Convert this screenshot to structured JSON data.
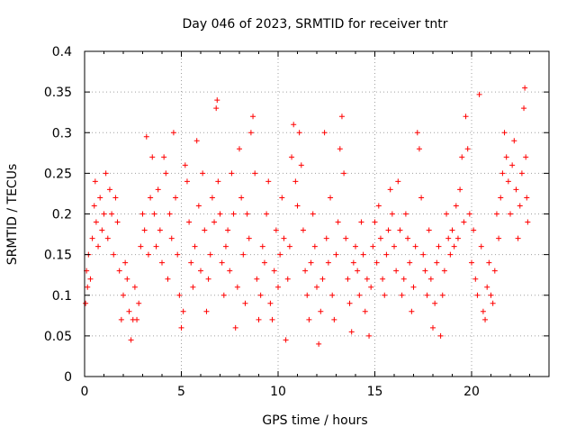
{
  "chart_data": {
    "type": "scatter",
    "title": "Day 046 of 2023, SRMTID for receiver tntr",
    "xlabel": "GPS time / hours",
    "ylabel": "SRMTID / TECUs",
    "xlim": [
      0,
      24
    ],
    "ylim": [
      0,
      0.4
    ],
    "x_ticks": [
      0,
      5,
      10,
      15,
      20
    ],
    "x_tick_labels": [
      "0",
      "5",
      "10",
      "15",
      "20"
    ],
    "y_ticks": [
      0,
      0.05,
      0.1,
      0.15,
      0.2,
      0.25,
      0.3,
      0.35,
      0.4
    ],
    "y_tick_labels": [
      "0",
      "0.05",
      "0.1",
      "0.15",
      "0.2",
      "0.25",
      "0.3",
      "0.35",
      "0.4"
    ],
    "grid": true,
    "marker": "+",
    "marker_color": "#ff0000",
    "series": [
      {
        "points": [
          [
            0.05,
            0.09
          ],
          [
            0.1,
            0.13
          ],
          [
            0.15,
            0.11
          ],
          [
            0.2,
            0.15
          ],
          [
            0.3,
            0.12
          ],
          [
            0.4,
            0.17
          ],
          [
            0.5,
            0.21
          ],
          [
            0.55,
            0.24
          ],
          [
            0.6,
            0.19
          ],
          [
            0.7,
            0.16
          ],
          [
            0.8,
            0.22
          ],
          [
            0.9,
            0.18
          ],
          [
            1.0,
            0.2
          ],
          [
            1.1,
            0.25
          ],
          [
            1.2,
            0.17
          ],
          [
            1.3,
            0.23
          ],
          [
            1.4,
            0.2
          ],
          [
            1.5,
            0.15
          ],
          [
            1.6,
            0.22
          ],
          [
            1.7,
            0.19
          ],
          [
            1.8,
            0.13
          ],
          [
            1.9,
            0.07
          ],
          [
            2.0,
            0.1
          ],
          [
            2.1,
            0.14
          ],
          [
            2.2,
            0.12
          ],
          [
            2.3,
            0.08
          ],
          [
            2.4,
            0.045
          ],
          [
            2.5,
            0.07
          ],
          [
            2.6,
            0.11
          ],
          [
            2.7,
            0.07
          ],
          [
            2.8,
            0.09
          ],
          [
            2.9,
            0.16
          ],
          [
            3.0,
            0.2
          ],
          [
            3.1,
            0.18
          ],
          [
            3.2,
            0.295
          ],
          [
            3.3,
            0.15
          ],
          [
            3.4,
            0.22
          ],
          [
            3.5,
            0.27
          ],
          [
            3.6,
            0.2
          ],
          [
            3.7,
            0.16
          ],
          [
            3.8,
            0.23
          ],
          [
            3.9,
            0.18
          ],
          [
            4.0,
            0.14
          ],
          [
            4.1,
            0.27
          ],
          [
            4.2,
            0.25
          ],
          [
            4.3,
            0.12
          ],
          [
            4.4,
            0.2
          ],
          [
            4.5,
            0.17
          ],
          [
            4.6,
            0.3
          ],
          [
            4.7,
            0.22
          ],
          [
            4.8,
            0.15
          ],
          [
            4.9,
            0.1
          ],
          [
            5.0,
            0.06
          ],
          [
            5.1,
            0.08
          ],
          [
            5.2,
            0.26
          ],
          [
            5.3,
            0.24
          ],
          [
            5.4,
            0.19
          ],
          [
            5.5,
            0.14
          ],
          [
            5.6,
            0.11
          ],
          [
            5.7,
            0.16
          ],
          [
            5.8,
            0.29
          ],
          [
            5.9,
            0.21
          ],
          [
            6.0,
            0.13
          ],
          [
            6.1,
            0.25
          ],
          [
            6.2,
            0.18
          ],
          [
            6.3,
            0.08
          ],
          [
            6.4,
            0.12
          ],
          [
            6.5,
            0.15
          ],
          [
            6.6,
            0.22
          ],
          [
            6.7,
            0.19
          ],
          [
            6.8,
            0.33
          ],
          [
            6.85,
            0.34
          ],
          [
            6.9,
            0.24
          ],
          [
            7.0,
            0.2
          ],
          [
            7.1,
            0.14
          ],
          [
            7.2,
            0.1
          ],
          [
            7.3,
            0.16
          ],
          [
            7.4,
            0.18
          ],
          [
            7.5,
            0.13
          ],
          [
            7.6,
            0.25
          ],
          [
            7.7,
            0.2
          ],
          [
            7.8,
            0.06
          ],
          [
            7.9,
            0.11
          ],
          [
            8.0,
            0.28
          ],
          [
            8.1,
            0.22
          ],
          [
            8.2,
            0.15
          ],
          [
            8.3,
            0.09
          ],
          [
            8.4,
            0.2
          ],
          [
            8.5,
            0.17
          ],
          [
            8.6,
            0.3
          ],
          [
            8.7,
            0.32
          ],
          [
            8.8,
            0.25
          ],
          [
            8.9,
            0.12
          ],
          [
            9.0,
            0.07
          ],
          [
            9.1,
            0.1
          ],
          [
            9.2,
            0.16
          ],
          [
            9.3,
            0.14
          ],
          [
            9.4,
            0.2
          ],
          [
            9.5,
            0.24
          ],
          [
            9.6,
            0.09
          ],
          [
            9.7,
            0.07
          ],
          [
            9.8,
            0.13
          ],
          [
            9.9,
            0.18
          ],
          [
            10.0,
            0.11
          ],
          [
            10.1,
            0.15
          ],
          [
            10.2,
            0.22
          ],
          [
            10.3,
            0.17
          ],
          [
            10.4,
            0.045
          ],
          [
            10.5,
            0.12
          ],
          [
            10.6,
            0.16
          ],
          [
            10.7,
            0.27
          ],
          [
            10.8,
            0.31
          ],
          [
            10.9,
            0.24
          ],
          [
            11.0,
            0.21
          ],
          [
            11.1,
            0.3
          ],
          [
            11.2,
            0.26
          ],
          [
            11.3,
            0.18
          ],
          [
            11.4,
            0.13
          ],
          [
            11.5,
            0.1
          ],
          [
            11.6,
            0.07
          ],
          [
            11.7,
            0.14
          ],
          [
            11.8,
            0.2
          ],
          [
            11.9,
            0.16
          ],
          [
            12.0,
            0.11
          ],
          [
            12.1,
            0.04
          ],
          [
            12.2,
            0.08
          ],
          [
            12.3,
            0.12
          ],
          [
            12.4,
            0.3
          ],
          [
            12.5,
            0.17
          ],
          [
            12.6,
            0.14
          ],
          [
            12.7,
            0.22
          ],
          [
            12.8,
            0.1
          ],
          [
            12.9,
            0.07
          ],
          [
            13.0,
            0.15
          ],
          [
            13.1,
            0.19
          ],
          [
            13.2,
            0.28
          ],
          [
            13.3,
            0.32
          ],
          [
            13.4,
            0.25
          ],
          [
            13.5,
            0.17
          ],
          [
            13.6,
            0.12
          ],
          [
            13.7,
            0.09
          ],
          [
            13.8,
            0.055
          ],
          [
            13.9,
            0.14
          ],
          [
            14.0,
            0.16
          ],
          [
            14.1,
            0.13
          ],
          [
            14.2,
            0.1
          ],
          [
            14.3,
            0.19
          ],
          [
            14.4,
            0.15
          ],
          [
            14.5,
            0.08
          ],
          [
            14.6,
            0.12
          ],
          [
            14.7,
            0.05
          ],
          [
            14.8,
            0.11
          ],
          [
            14.9,
            0.16
          ],
          [
            15.0,
            0.19
          ],
          [
            15.1,
            0.14
          ],
          [
            15.2,
            0.21
          ],
          [
            15.3,
            0.17
          ],
          [
            15.4,
            0.12
          ],
          [
            15.5,
            0.1
          ],
          [
            15.6,
            0.15
          ],
          [
            15.7,
            0.18
          ],
          [
            15.8,
            0.23
          ],
          [
            15.9,
            0.2
          ],
          [
            16.0,
            0.16
          ],
          [
            16.1,
            0.13
          ],
          [
            16.2,
            0.24
          ],
          [
            16.3,
            0.18
          ],
          [
            16.4,
            0.1
          ],
          [
            16.5,
            0.12
          ],
          [
            16.6,
            0.2
          ],
          [
            16.7,
            0.17
          ],
          [
            16.8,
            0.14
          ],
          [
            16.9,
            0.08
          ],
          [
            17.0,
            0.11
          ],
          [
            17.1,
            0.16
          ],
          [
            17.2,
            0.3
          ],
          [
            17.3,
            0.28
          ],
          [
            17.4,
            0.22
          ],
          [
            17.5,
            0.15
          ],
          [
            17.6,
            0.13
          ],
          [
            17.7,
            0.1
          ],
          [
            17.8,
            0.18
          ],
          [
            17.9,
            0.12
          ],
          [
            18.0,
            0.06
          ],
          [
            18.1,
            0.09
          ],
          [
            18.2,
            0.14
          ],
          [
            18.3,
            0.16
          ],
          [
            18.4,
            0.05
          ],
          [
            18.5,
            0.1
          ],
          [
            18.6,
            0.13
          ],
          [
            18.7,
            0.2
          ],
          [
            18.8,
            0.17
          ],
          [
            18.9,
            0.15
          ],
          [
            19.0,
            0.18
          ],
          [
            19.1,
            0.16
          ],
          [
            19.2,
            0.21
          ],
          [
            19.3,
            0.17
          ],
          [
            19.4,
            0.23
          ],
          [
            19.5,
            0.27
          ],
          [
            19.6,
            0.19
          ],
          [
            19.7,
            0.32
          ],
          [
            19.8,
            0.28
          ],
          [
            19.9,
            0.2
          ],
          [
            20.0,
            0.14
          ],
          [
            20.1,
            0.18
          ],
          [
            20.2,
            0.12
          ],
          [
            20.3,
            0.1
          ],
          [
            20.4,
            0.347
          ],
          [
            20.5,
            0.16
          ],
          [
            20.6,
            0.08
          ],
          [
            20.7,
            0.07
          ],
          [
            20.8,
            0.11
          ],
          [
            20.9,
            0.14
          ],
          [
            21.0,
            0.1
          ],
          [
            21.1,
            0.09
          ],
          [
            21.2,
            0.13
          ],
          [
            21.3,
            0.2
          ],
          [
            21.4,
            0.17
          ],
          [
            21.5,
            0.22
          ],
          [
            21.6,
            0.25
          ],
          [
            21.7,
            0.3
          ],
          [
            21.8,
            0.27
          ],
          [
            21.9,
            0.24
          ],
          [
            22.0,
            0.2
          ],
          [
            22.1,
            0.26
          ],
          [
            22.2,
            0.29
          ],
          [
            22.3,
            0.23
          ],
          [
            22.4,
            0.17
          ],
          [
            22.5,
            0.21
          ],
          [
            22.6,
            0.25
          ],
          [
            22.7,
            0.33
          ],
          [
            22.75,
            0.355
          ],
          [
            22.8,
            0.27
          ],
          [
            22.85,
            0.22
          ],
          [
            22.9,
            0.19
          ]
        ]
      }
    ]
  }
}
